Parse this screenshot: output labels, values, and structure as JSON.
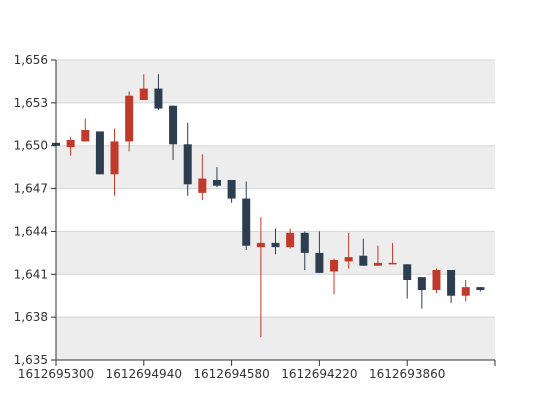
{
  "chart_data": {
    "type": "candlestick",
    "title": "",
    "xlabel": "",
    "ylabel": "",
    "ylim": [
      1635,
      1656
    ],
    "y_ticks": [
      "1,635",
      "1,638",
      "1,641",
      "1,644",
      "1,647",
      "1,650",
      "1,653",
      "1,656"
    ],
    "y_tick_values": [
      1635,
      1638,
      1641,
      1644,
      1647,
      1650,
      1653,
      1656
    ],
    "x_ticks": [
      "1612695300",
      "1612694940",
      "1612694580",
      "1612694220",
      "1612693860"
    ],
    "x_axis_note": "reversed axis: time decreases left to right",
    "grid": true,
    "grid_band_colors": [
      "#ffffff",
      "#ededed"
    ],
    "up_color": "#2c3e50",
    "down_color": "#c0392b",
    "candles": [
      {
        "x": 1612695300,
        "open": 1650.0,
        "high": 1651.2,
        "low": 1649.9,
        "close": 1650.2
      },
      {
        "x": 1612695240,
        "open": 1650.4,
        "high": 1650.6,
        "low": 1649.3,
        "close": 1649.9
      },
      {
        "x": 1612695180,
        "open": 1651.1,
        "high": 1651.9,
        "low": 1650.3,
        "close": 1650.3
      },
      {
        "x": 1612695120,
        "open": 1648.0,
        "high": 1651.0,
        "low": 1648.0,
        "close": 1651.0
      },
      {
        "x": 1612695060,
        "open": 1650.3,
        "high": 1651.2,
        "low": 1646.5,
        "close": 1648.0
      },
      {
        "x": 1612695000,
        "open": 1653.5,
        "high": 1653.8,
        "low": 1649.6,
        "close": 1650.3
      },
      {
        "x": 1612694940,
        "open": 1654.0,
        "high": 1655.0,
        "low": 1653.2,
        "close": 1653.2
      },
      {
        "x": 1612694880,
        "open": 1652.6,
        "high": 1655.0,
        "low": 1652.5,
        "close": 1654.0
      },
      {
        "x": 1612694820,
        "open": 1650.1,
        "high": 1652.8,
        "low": 1649.0,
        "close": 1652.8
      },
      {
        "x": 1612694760,
        "open": 1647.3,
        "high": 1651.6,
        "low": 1646.5,
        "close": 1650.1
      },
      {
        "x": 1612694700,
        "open": 1647.7,
        "high": 1649.4,
        "low": 1646.2,
        "close": 1646.7
      },
      {
        "x": 1612694640,
        "open": 1647.2,
        "high": 1648.5,
        "low": 1647.1,
        "close": 1647.6
      },
      {
        "x": 1612694580,
        "open": 1646.3,
        "high": 1647.6,
        "low": 1646.0,
        "close": 1647.6
      },
      {
        "x": 1612694520,
        "open": 1643.0,
        "high": 1647.5,
        "low": 1642.7,
        "close": 1646.3
      },
      {
        "x": 1612694460,
        "open": 1643.2,
        "high": 1645.0,
        "low": 1636.6,
        "close": 1642.9
      },
      {
        "x": 1612694400,
        "open": 1642.9,
        "high": 1644.2,
        "low": 1642.4,
        "close": 1643.2
      },
      {
        "x": 1612694340,
        "open": 1643.9,
        "high": 1644.2,
        "low": 1642.8,
        "close": 1642.9
      },
      {
        "x": 1612694280,
        "open": 1642.5,
        "high": 1644.0,
        "low": 1641.3,
        "close": 1643.9
      },
      {
        "x": 1612694220,
        "open": 1641.1,
        "high": 1644.0,
        "low": 1641.1,
        "close": 1642.5
      },
      {
        "x": 1612694160,
        "open": 1642.0,
        "high": 1642.1,
        "low": 1639.6,
        "close": 1641.2
      },
      {
        "x": 1612694100,
        "open": 1642.2,
        "high": 1643.9,
        "low": 1641.4,
        "close": 1641.9
      },
      {
        "x": 1612694040,
        "open": 1641.6,
        "high": 1643.5,
        "low": 1641.6,
        "close": 1642.3
      },
      {
        "x": 1612693980,
        "open": 1641.8,
        "high": 1643.0,
        "low": 1641.6,
        "close": 1641.6
      },
      {
        "x": 1612693920,
        "open": 1641.8,
        "high": 1643.2,
        "low": 1641.7,
        "close": 1641.7
      },
      {
        "x": 1612693860,
        "open": 1640.6,
        "high": 1641.7,
        "low": 1639.3,
        "close": 1641.7
      },
      {
        "x": 1612693800,
        "open": 1639.9,
        "high": 1640.8,
        "low": 1638.6,
        "close": 1640.8
      },
      {
        "x": 1612693740,
        "open": 1641.3,
        "high": 1641.4,
        "low": 1639.7,
        "close": 1639.9
      },
      {
        "x": 1612693680,
        "open": 1639.5,
        "high": 1641.3,
        "low": 1639.0,
        "close": 1641.3
      },
      {
        "x": 1612693620,
        "open": 1640.1,
        "high": 1640.6,
        "low": 1639.1,
        "close": 1639.5
      },
      {
        "x": 1612693560,
        "open": 1639.9,
        "high": 1640.1,
        "low": 1639.8,
        "close": 1640.1
      }
    ]
  }
}
